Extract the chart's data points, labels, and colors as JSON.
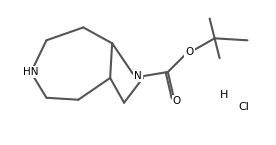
{
  "bg_color": "#ffffff",
  "bond_color": "#555555",
  "text_color": "#000000",
  "line_width": 1.5,
  "label_fontsize": 7.5,
  "figsize": [
    2.76,
    1.45
  ],
  "dpi": 100,
  "xlim": [
    0,
    276
  ],
  "ylim": [
    0,
    145
  ],
  "HN": "HN",
  "N": "N",
  "O_ester": "O",
  "O_carbonyl": "O",
  "H": "H",
  "Cl": "Cl"
}
